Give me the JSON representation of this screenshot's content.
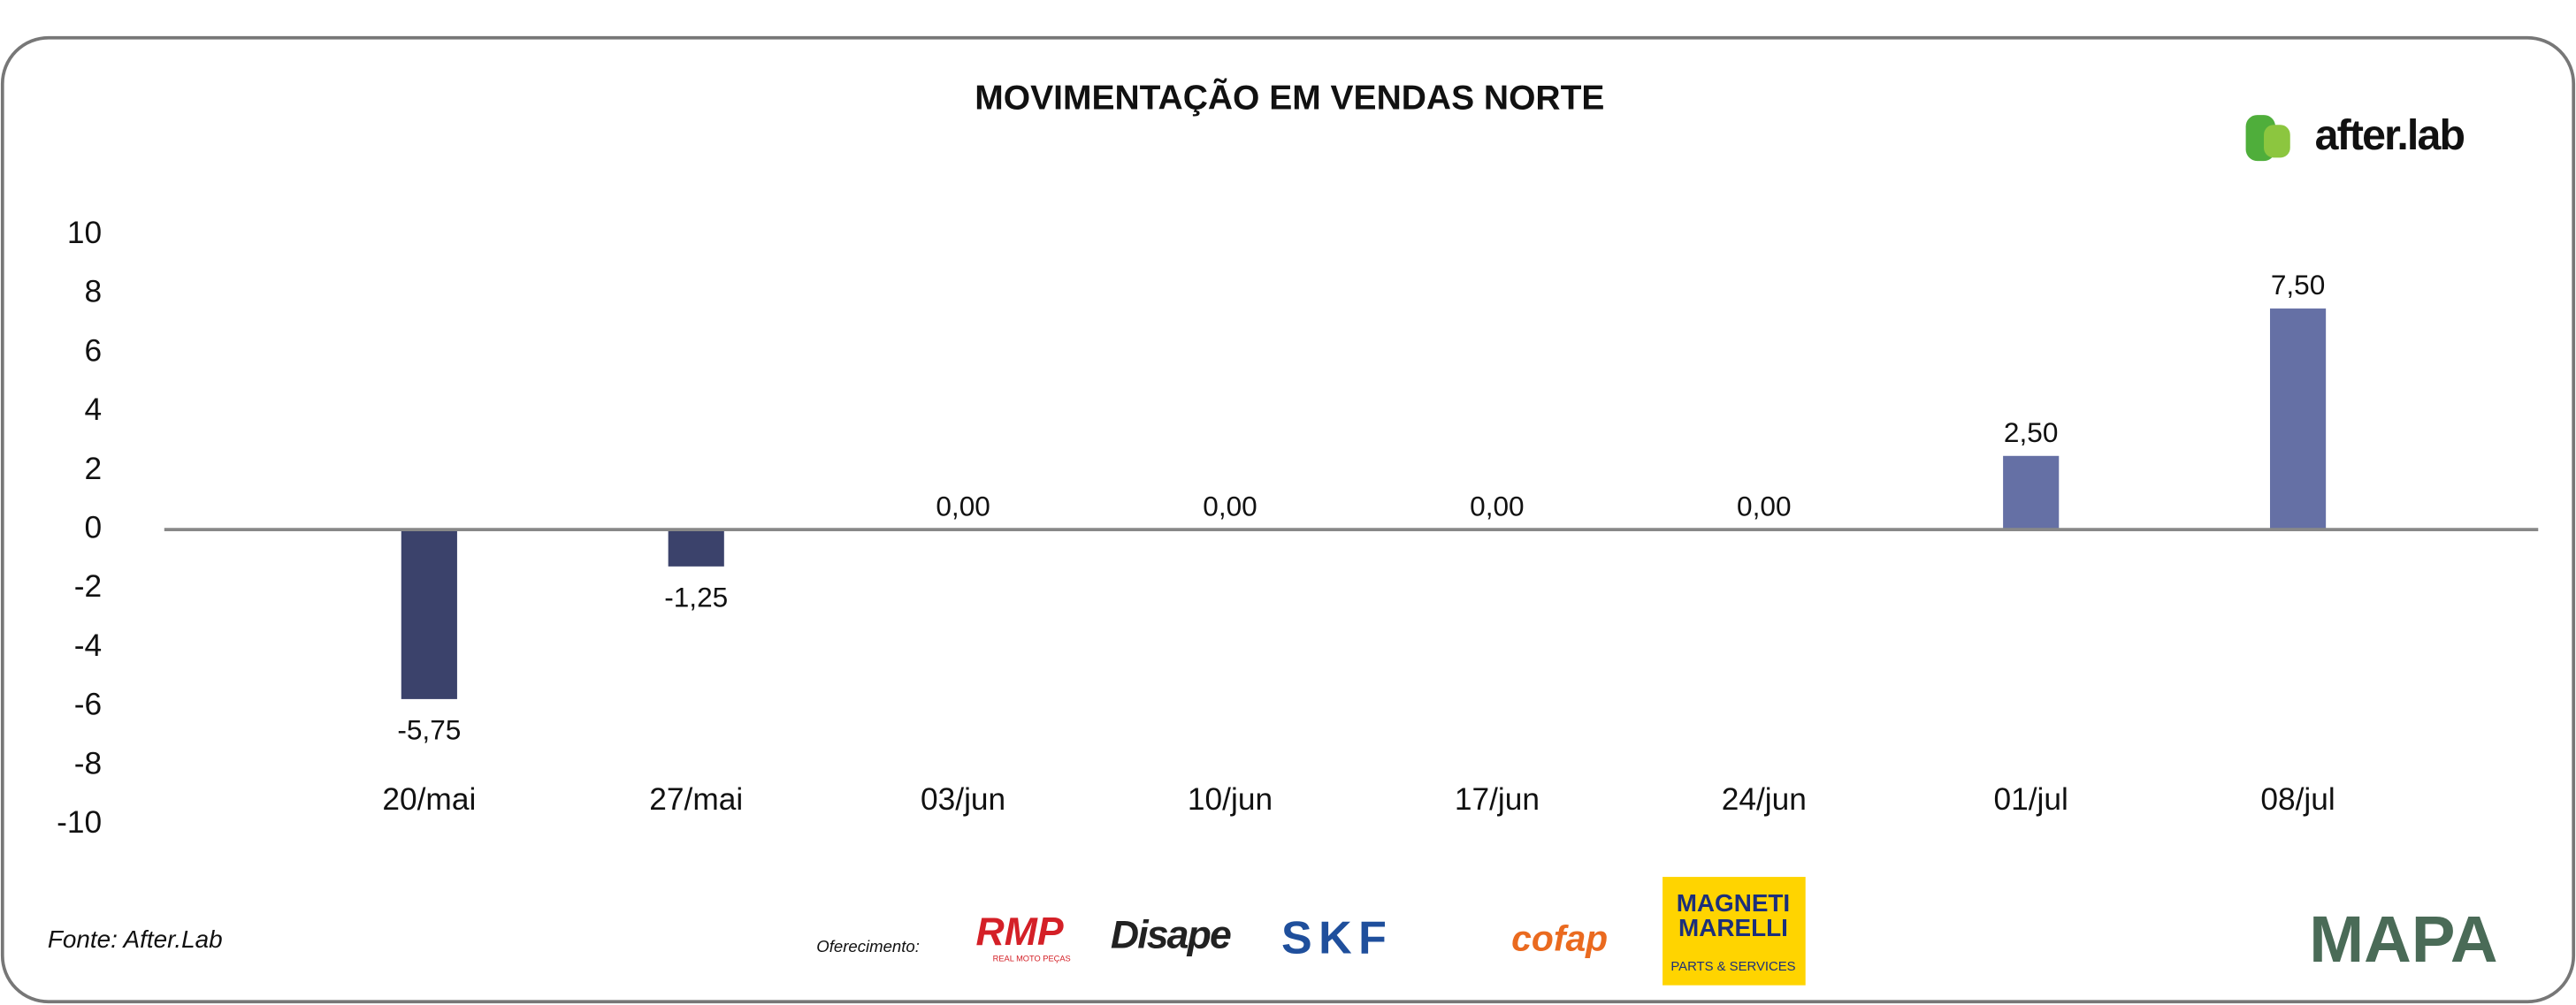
{
  "chart_data": {
    "type": "bar",
    "title": "MOVIMENTAÇÃO EM VENDAS NORTE",
    "categories": [
      "20/mai",
      "27/mai",
      "03/jun",
      "10/jun",
      "17/jun",
      "24/jun",
      "01/jul",
      "08/jul"
    ],
    "values": [
      -5.75,
      -1.25,
      0,
      0,
      0,
      0,
      2.5,
      7.5
    ],
    "value_labels": [
      "-5,75",
      "-1,25",
      "0,00",
      "0,00",
      "0,00",
      "0,00",
      "2,50",
      "7,50"
    ],
    "color": "#6570a5",
    "negative_color": "#3b426b",
    "ylim": [
      -10,
      10
    ],
    "yticks": [
      -10,
      -8,
      -6,
      -4,
      -2,
      0,
      2,
      4,
      6,
      8,
      10
    ],
    "grid": false
  },
  "brand": "after.lab",
  "source": "Fonte: After.Lab",
  "sponsor_label": "Oferecimento:",
  "sponsors": [
    "RMP",
    "REAL MOTO PEÇAS",
    "Disape",
    "SKF",
    "cofap",
    "MAGNETI",
    "MARELLI",
    "PARTS & SERVICES"
  ],
  "footer_logo": "MAPA"
}
